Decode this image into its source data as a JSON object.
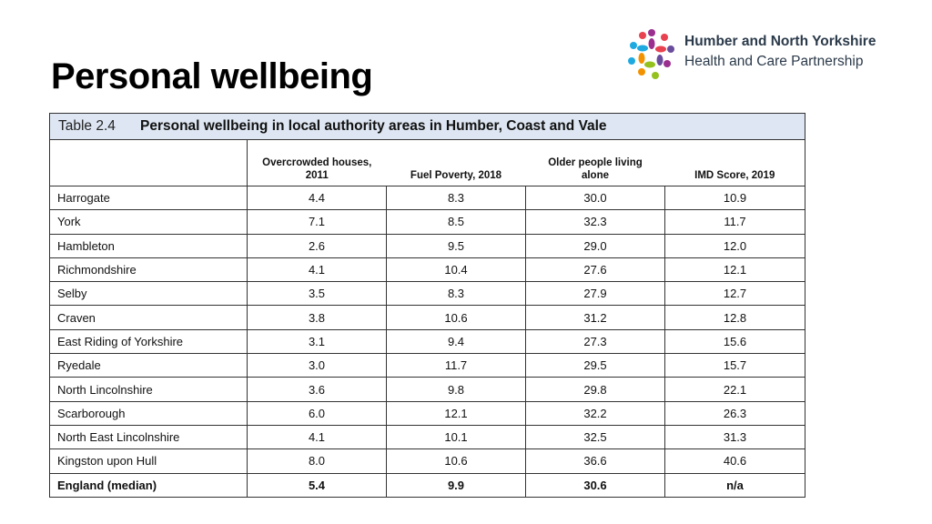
{
  "slide": {
    "title": "Personal wellbeing"
  },
  "logo": {
    "line1": "Humber and North Yorkshire",
    "line2": "Health and Care Partnership",
    "colors": [
      "#9b2f8f",
      "#e8414f",
      "#f39200",
      "#95c11f",
      "#1fa9e1",
      "#6a4c9c"
    ]
  },
  "table": {
    "caption_number": "Table 2.4",
    "caption_text": "Personal wellbeing in local authority areas in Humber, Coast and Vale",
    "header_color": "#dde6f2",
    "columns": [
      {
        "line1": "Overcrowded houses,",
        "line2": "2011"
      },
      {
        "line1": "",
        "line2": "Fuel Poverty, 2018"
      },
      {
        "line1": "Older people living",
        "line2": "alone"
      },
      {
        "line1": "",
        "line2": "IMD Score, 2019"
      }
    ],
    "rows": [
      {
        "area": "Harrogate",
        "overcrowded": "4.4",
        "fuel": "8.3",
        "alone": "30.0",
        "imd": "10.9"
      },
      {
        "area": "York",
        "overcrowded": "7.1",
        "fuel": "8.5",
        "alone": "32.3",
        "imd": "11.7"
      },
      {
        "area": "Hambleton",
        "overcrowded": "2.6",
        "fuel": "9.5",
        "alone": "29.0",
        "imd": "12.0"
      },
      {
        "area": "Richmondshire",
        "overcrowded": "4.1",
        "fuel": "10.4",
        "alone": "27.6",
        "imd": "12.1"
      },
      {
        "area": "Selby",
        "overcrowded": "3.5",
        "fuel": "8.3",
        "alone": "27.9",
        "imd": "12.7"
      },
      {
        "area": "Craven",
        "overcrowded": "3.8",
        "fuel": "10.6",
        "alone": "31.2",
        "imd": "12.8"
      },
      {
        "area": "East Riding of Yorkshire",
        "overcrowded": "3.1",
        "fuel": "9.4",
        "alone": "27.3",
        "imd": "15.6"
      },
      {
        "area": "Ryedale",
        "overcrowded": "3.0",
        "fuel": "11.7",
        "alone": "29.5",
        "imd": "15.7"
      },
      {
        "area": "North Lincolnshire",
        "overcrowded": "3.6",
        "fuel": "9.8",
        "alone": "29.8",
        "imd": "22.1"
      },
      {
        "area": "Scarborough",
        "overcrowded": "6.0",
        "fuel": "12.1",
        "alone": "32.2",
        "imd": "26.3"
      },
      {
        "area": "North East Lincolnshire",
        "overcrowded": "4.1",
        "fuel": "10.1",
        "alone": "32.5",
        "imd": "31.3"
      },
      {
        "area": "Kingston upon Hull",
        "overcrowded": "8.0",
        "fuel": "10.6",
        "alone": "36.6",
        "imd": "40.6"
      }
    ],
    "summary_row": {
      "area": "England (median)",
      "overcrowded": "5.4",
      "fuel": "9.9",
      "alone": "30.6",
      "imd": "n/a"
    }
  }
}
